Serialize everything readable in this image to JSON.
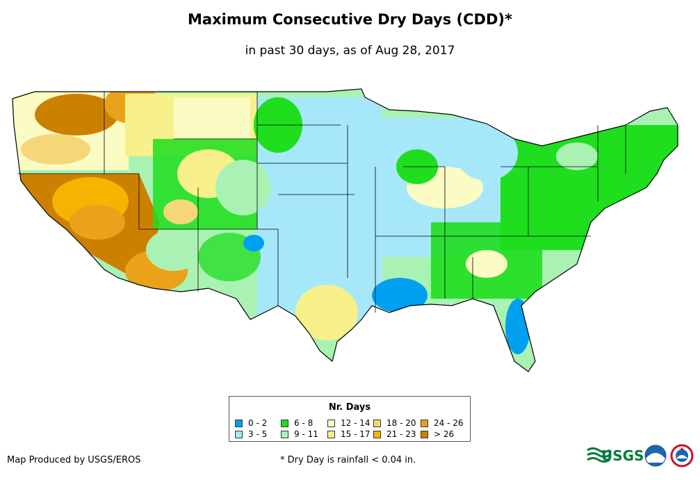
{
  "title": "Maximum Consecutive Dry Days (CDD)*",
  "subtitle": "in past 30 days, as of Aug 28, 2017",
  "legend": {
    "title": "Nr. Days",
    "items": [
      {
        "label": "0 - 2",
        "color": "#00a0f0"
      },
      {
        "label": "3 - 5",
        "color": "#a6e8fa"
      },
      {
        "label": "6 - 8",
        "color": "#1ede1e"
      },
      {
        "label": "9 - 11",
        "color": "#a9f2b3"
      },
      {
        "label": "12 - 14",
        "color": "#fbfbc4"
      },
      {
        "label": "15 - 17",
        "color": "#f8f08a"
      },
      {
        "label": "18 - 20",
        "color": "#f5d77a"
      },
      {
        "label": "21 - 23",
        "color": "#f4b400"
      },
      {
        "label": "24 - 26",
        "color": "#eaa21a"
      },
      {
        "label": "> 26",
        "color": "#cc8000"
      }
    ]
  },
  "credit": "Map Produced by USGS/EROS",
  "footnote": "* Dry Day is rainfall < 0.04 in.",
  "logos": {
    "usgs": "USGS"
  }
}
